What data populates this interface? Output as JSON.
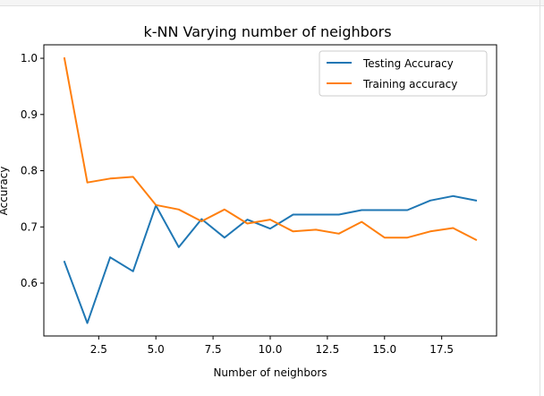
{
  "chart_data": {
    "type": "line",
    "title": "k-NN Varying number of neighbors",
    "xlabel": "Number of neighbors",
    "ylabel": "Accuracy",
    "xlim": [
      0.1,
      19.9
    ],
    "ylim": [
      0.506,
      1.024
    ],
    "xticks": [
      "2.5",
      "5.0",
      "7.5",
      "10.0",
      "12.5",
      "15.0",
      "17.5"
    ],
    "xtick_values": [
      2.5,
      5.0,
      7.5,
      10.0,
      12.5,
      15.0,
      17.5
    ],
    "yticks": [
      "0.6",
      "0.7",
      "0.8",
      "0.9",
      "1.0"
    ],
    "ytick_values": [
      0.6,
      0.7,
      0.8,
      0.9,
      1.0
    ],
    "grid": false,
    "legend_position": "top-right",
    "x": [
      1,
      2,
      3,
      4,
      5,
      6,
      7,
      8,
      9,
      10,
      11,
      12,
      13,
      14,
      15,
      16,
      17,
      18,
      19
    ],
    "series": [
      {
        "name": "Testing Accuracy",
        "color": "#1f77b4",
        "values": [
          0.638,
          0.529,
          0.646,
          0.621,
          0.738,
          0.664,
          0.714,
          0.681,
          0.713,
          0.697,
          0.722,
          0.722,
          0.722,
          0.73,
          0.73,
          0.73,
          0.747,
          0.755,
          0.747
        ]
      },
      {
        "name": "Training accuracy",
        "color": "#ff7f0e",
        "values": [
          1.0,
          0.779,
          0.786,
          0.789,
          0.739,
          0.731,
          0.71,
          0.731,
          0.706,
          0.713,
          0.692,
          0.695,
          0.688,
          0.709,
          0.681,
          0.681,
          0.692,
          0.698,
          0.677
        ]
      }
    ]
  }
}
